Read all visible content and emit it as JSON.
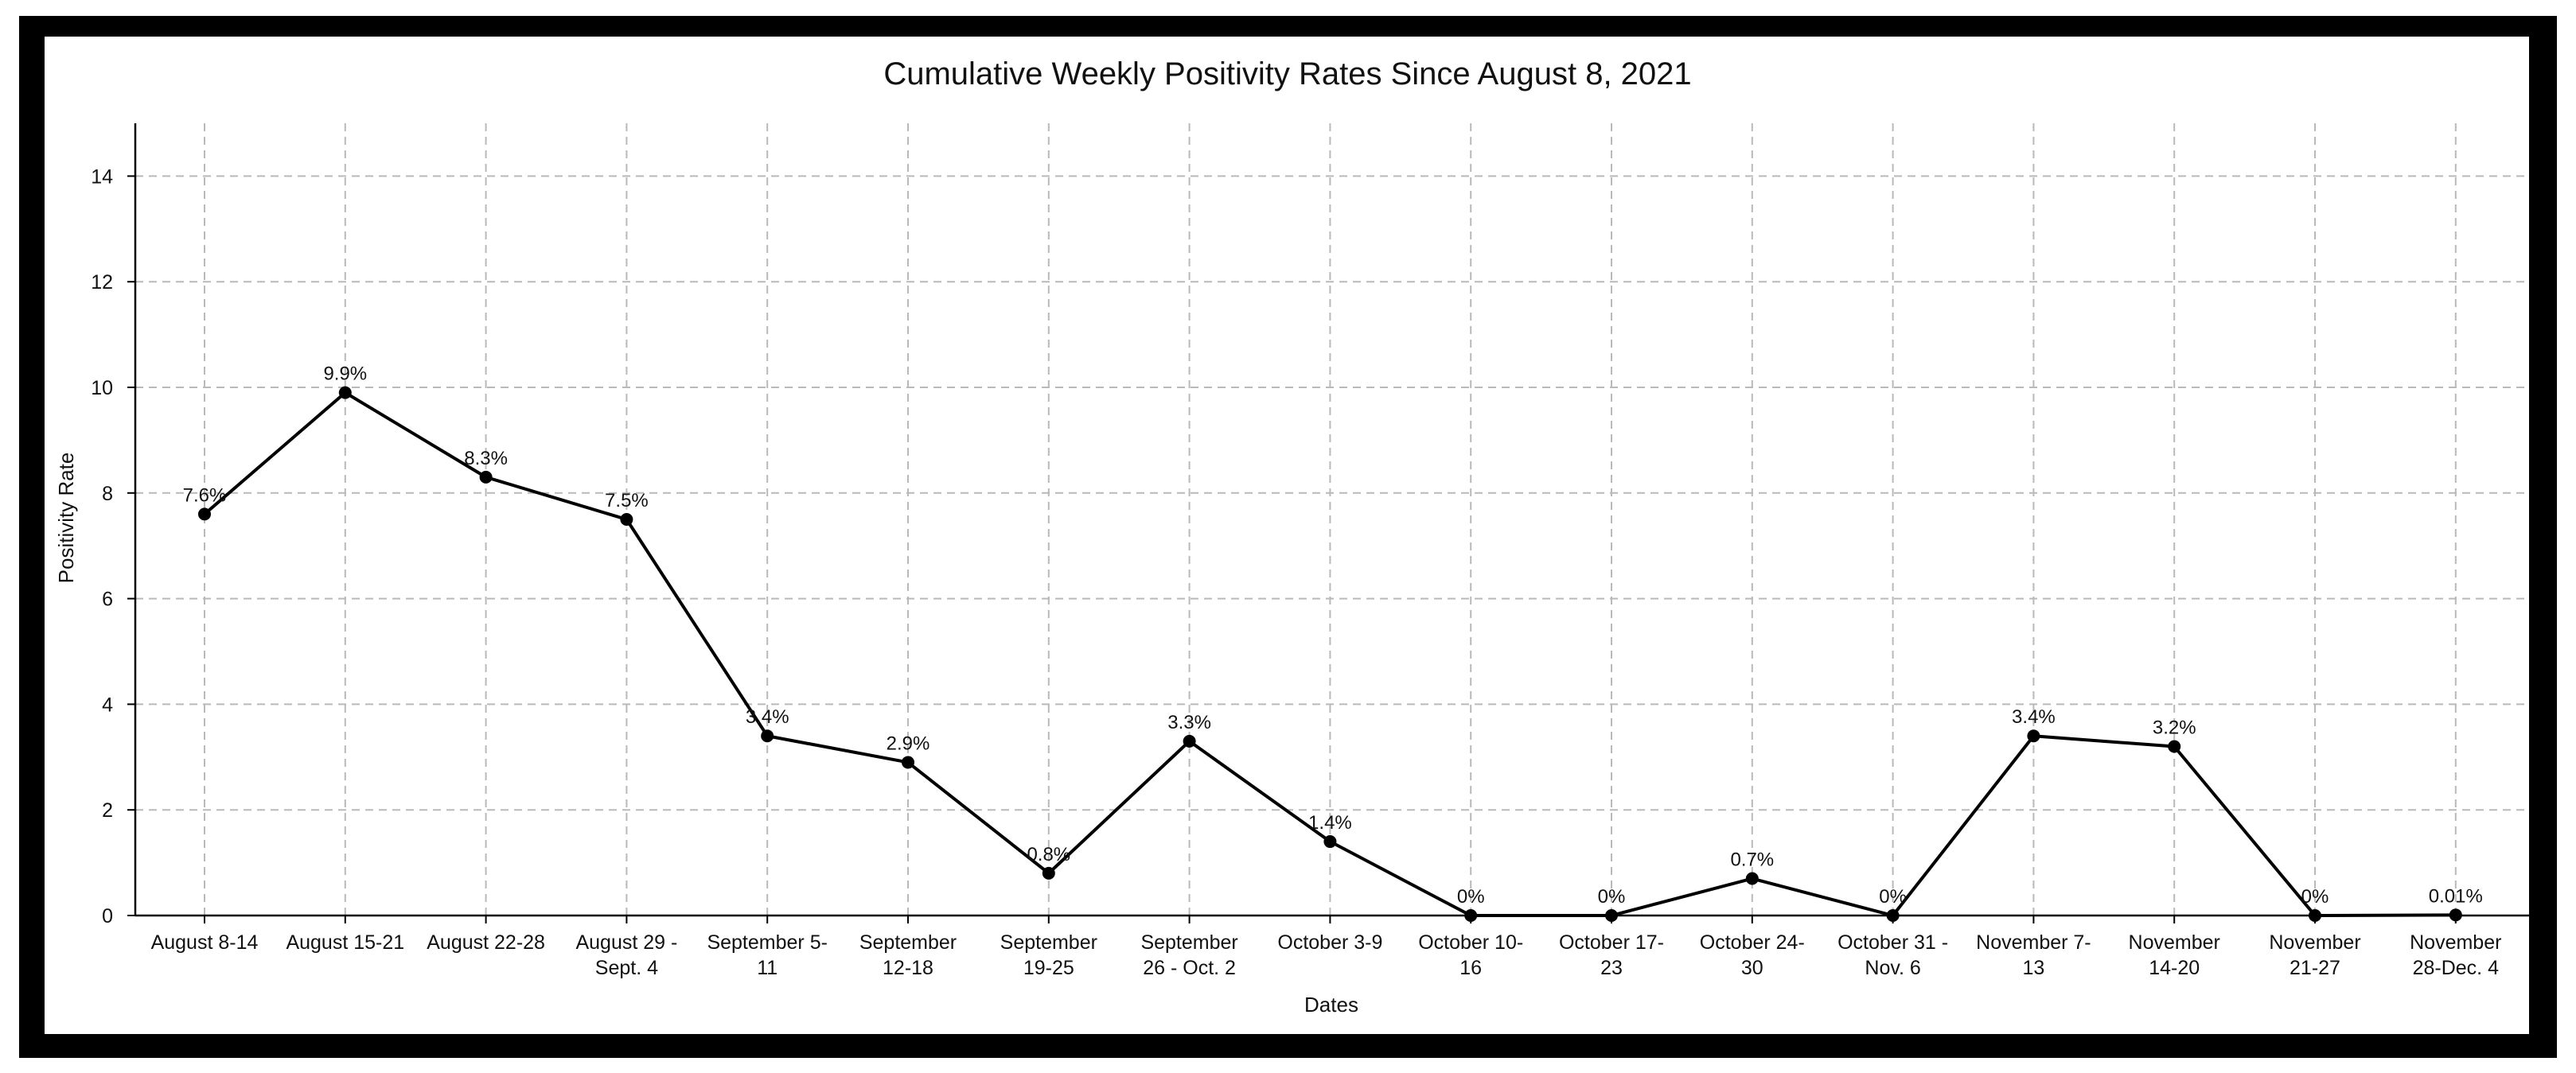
{
  "chart_data": {
    "type": "line",
    "title": "Cumulative Weekly Positivity Rates Since August 8, 2021",
    "xlabel": "Dates",
    "ylabel": "Positivity Rate",
    "ylim": [
      0,
      15
    ],
    "yticks": [
      0,
      2,
      4,
      6,
      8,
      10,
      12,
      14
    ],
    "grid": true,
    "categories": [
      [
        "August 8-14"
      ],
      [
        "August 15-21"
      ],
      [
        "August 22-28"
      ],
      [
        "August 29 -",
        "Sept. 4"
      ],
      [
        "September 5-",
        "11"
      ],
      [
        "September",
        "12-18"
      ],
      [
        "September",
        "19-25"
      ],
      [
        "September",
        "26 - Oct. 2"
      ],
      [
        "October 3-9"
      ],
      [
        "October 10-",
        "16"
      ],
      [
        "October 17-",
        "23"
      ],
      [
        "October 24-",
        "30"
      ],
      [
        "October 31 -",
        "Nov. 6"
      ],
      [
        "November 7-",
        "13"
      ],
      [
        "November",
        "14-20"
      ],
      [
        "November",
        "21-27"
      ],
      [
        "November",
        "28-Dec. 4"
      ]
    ],
    "series": [
      {
        "values": [
          7.6,
          9.9,
          8.3,
          7.5,
          3.4,
          2.9,
          0.8,
          3.3,
          1.4,
          0,
          0,
          0.7,
          0,
          3.4,
          3.2,
          0,
          0.01
        ],
        "labels": [
          "7.6%",
          "9.9%",
          "8.3%",
          "7.5%",
          "3.4%",
          "2.9%",
          "0.8%",
          "3.3%",
          "1.4%",
          "0%",
          "0%",
          "0.7%",
          "0%",
          "3.4%",
          "3.2%",
          "0%",
          "0.01%"
        ],
        "color": "#000000"
      }
    ]
  }
}
